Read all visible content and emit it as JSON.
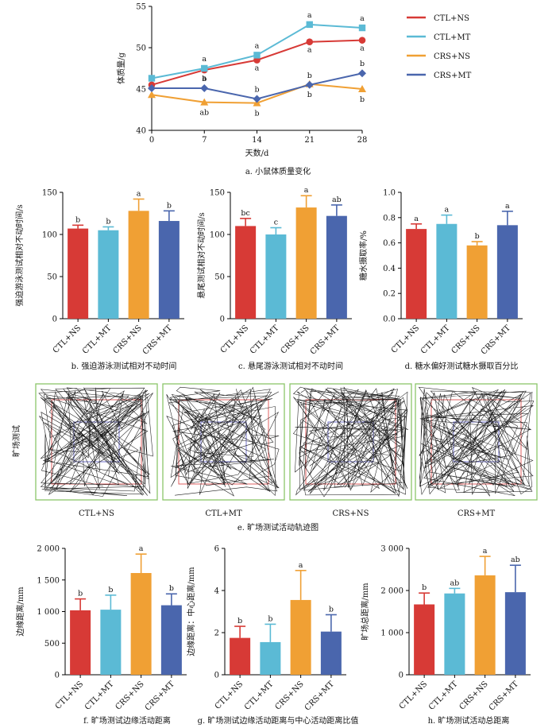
{
  "colors": {
    "CTL+NS": "#d73a36",
    "CTL+MT": "#5bbad5",
    "CRS+NS": "#f0a034",
    "CRS+MT": "#4a66ad",
    "track_frame": "#8cc56a",
    "outer_zone": "#e06060",
    "center_zone": "#7070c8"
  },
  "groups": [
    "CTL+NS",
    "CTL+MT",
    "CRS+NS",
    "CRS+MT"
  ],
  "open_field": {
    "side_label": "旷场测试",
    "arenas": [
      "CTL+NS",
      "CTL+MT",
      "CRS+NS",
      "CRS+MT"
    ],
    "caption": "e. 旷场测试活动轨迹图"
  },
  "chart_data": [
    {
      "id": "a",
      "type": "line",
      "caption": "a. 小鼠体质量变化",
      "xlabel": "天数/d",
      "ylabel": "体质量/g",
      "x": [
        0,
        7,
        14,
        21,
        28
      ],
      "xticks": [
        "0",
        "7",
        "14",
        "21",
        "28"
      ],
      "ylim": [
        40,
        55
      ],
      "yticks": [
        "40",
        "45",
        "50",
        "55"
      ],
      "legend": "top-right",
      "series": [
        {
          "name": "CTL+NS",
          "marker": "circle",
          "values": [
            45.5,
            47.3,
            48.5,
            50.7,
            50.9
          ],
          "sig": [
            "",
            "a",
            "a",
            "a",
            "a"
          ]
        },
        {
          "name": "CTL+MT",
          "marker": "square",
          "values": [
            46.3,
            47.5,
            49.1,
            52.8,
            52.4
          ],
          "sig": [
            "",
            "a",
            "a",
            "a",
            "a"
          ]
        },
        {
          "name": "CRS+NS",
          "marker": "triangle",
          "values": [
            44.3,
            43.4,
            43.3,
            45.6,
            45.0
          ],
          "sig": [
            "",
            "ab",
            "b",
            "b",
            "b"
          ]
        },
        {
          "name": "CRS+MT",
          "marker": "diamond",
          "values": [
            45.1,
            45.1,
            43.8,
            45.5,
            46.9
          ],
          "sig": [
            "",
            "b",
            "b",
            "b",
            "b"
          ]
        }
      ]
    },
    {
      "id": "b",
      "type": "bar",
      "caption": "b. 强迫游泳测试相对不动时间",
      "ylabel": "强迫游泳测试相对不动时间/s",
      "categories": [
        "CTL+NS",
        "CTL+MT",
        "CRS+NS",
        "CRS+MT"
      ],
      "values": [
        107,
        105,
        128,
        116
      ],
      "errors": [
        4,
        4,
        14,
        12
      ],
      "sig": [
        "b",
        "b",
        "a",
        "b"
      ],
      "ylim": [
        0,
        150
      ],
      "yticks": [
        "0",
        "50",
        "100",
        "150"
      ]
    },
    {
      "id": "c",
      "type": "bar",
      "caption": "c. 悬尾游泳测试相对不动时间",
      "ylabel": "悬尾测试相对不动时间/s",
      "categories": [
        "CTL+NS",
        "CTL+MT",
        "CRS+NS",
        "CRS+MT"
      ],
      "values": [
        110,
        100,
        132,
        122
      ],
      "errors": [
        9,
        8,
        14,
        13
      ],
      "sig": [
        "bc",
        "c",
        "a",
        "ab"
      ],
      "ylim": [
        0,
        150
      ],
      "yticks": [
        "0",
        "50",
        "100",
        "150"
      ]
    },
    {
      "id": "d",
      "type": "bar",
      "caption": "d. 糖水偏好测试糖水摄取百分比",
      "ylabel": "糖水摄取率/%",
      "categories": [
        "CTL+NS",
        "CTL+MT",
        "CRS+NS",
        "CRS+MT"
      ],
      "values": [
        0.71,
        0.75,
        0.58,
        0.74
      ],
      "errors": [
        0.04,
        0.07,
        0.03,
        0.11
      ],
      "sig": [
        "a",
        "a",
        "b",
        "a"
      ],
      "ylim": [
        0,
        1.0
      ],
      "yticks": [
        "0.0",
        "0.2",
        "0.4",
        "0.6",
        "0.8",
        "1.0"
      ]
    },
    {
      "id": "f",
      "type": "bar",
      "caption": "f. 旷场测试边缘活动距离",
      "ylabel": "边缘距离/mm",
      "categories": [
        "CTL+NS",
        "CTL+MT",
        "CRS+NS",
        "CRS+MT"
      ],
      "values": [
        1020,
        1030,
        1610,
        1100
      ],
      "errors": [
        180,
        230,
        300,
        180
      ],
      "sig": [
        "b",
        "b",
        "a",
        "b"
      ],
      "ylim": [
        0,
        2000
      ],
      "yticks": [
        "0",
        "500",
        "1 000",
        "1 500",
        "2 000"
      ]
    },
    {
      "id": "g",
      "type": "bar",
      "caption": "g. 旷场测试边缘活动距离与中心活动距离比值",
      "ylabel": "边缘距离：中心距离/mm",
      "categories": [
        "CTL+NS",
        "CTL+MT",
        "CRS+NS",
        "CRS+MT"
      ],
      "values": [
        1.75,
        1.55,
        3.55,
        2.05
      ],
      "errors": [
        0.55,
        0.85,
        1.4,
        0.8
      ],
      "sig": [
        "b",
        "b",
        "a",
        "b"
      ],
      "ylim": [
        0,
        6
      ],
      "yticks": [
        "0",
        "2",
        "4",
        "6"
      ]
    },
    {
      "id": "h",
      "type": "bar",
      "caption": "h. 旷场测试活动总距离",
      "ylabel": "旷场总距离/mm",
      "categories": [
        "CTL+NS",
        "CTL+MT",
        "CRS+NS",
        "CRS+MT"
      ],
      "values": [
        1670,
        1930,
        2360,
        1960
      ],
      "errors": [
        270,
        120,
        450,
        640
      ],
      "sig": [
        "b",
        "ab",
        "a",
        "ab"
      ],
      "ylim": [
        0,
        3000
      ],
      "yticks": [
        "0",
        "1 000",
        "2 000",
        "3 000"
      ]
    }
  ]
}
